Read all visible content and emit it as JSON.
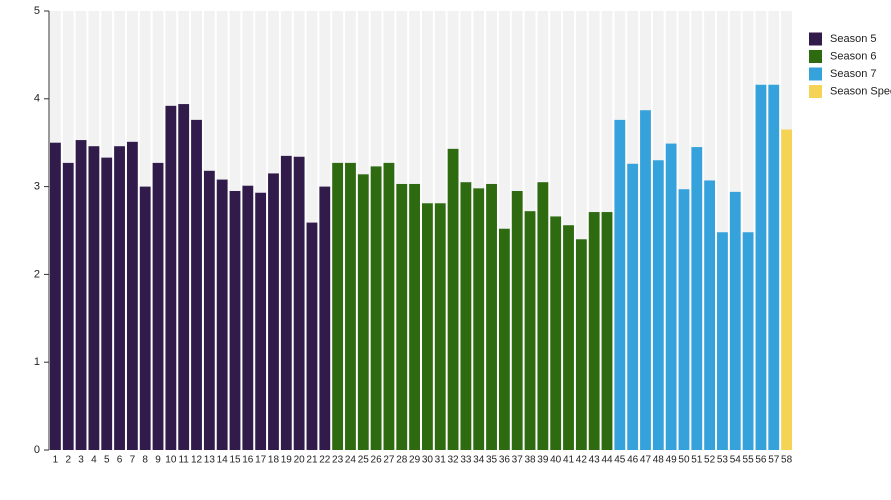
{
  "chart_data": {
    "type": "bar",
    "categories": [
      "1",
      "2",
      "3",
      "4",
      "5",
      "6",
      "7",
      "8",
      "9",
      "10",
      "11",
      "12",
      "13",
      "14",
      "15",
      "16",
      "17",
      "18",
      "19",
      "20",
      "21",
      "22",
      "23",
      "24",
      "25",
      "26",
      "27",
      "28",
      "29",
      "30",
      "31",
      "32",
      "33",
      "34",
      "35",
      "36",
      "37",
      "38",
      "39",
      "40",
      "41",
      "42",
      "43",
      "44",
      "45",
      "46",
      "47",
      "48",
      "49",
      "50",
      "51",
      "52",
      "53",
      "54",
      "55",
      "56",
      "57",
      "58"
    ],
    "series": [
      {
        "name": "Season 5",
        "color": "#311b4b",
        "values": [
          3.5,
          3.27,
          3.53,
          3.46,
          3.33,
          3.46,
          3.51,
          3.0,
          3.27,
          3.92,
          3.94,
          3.76,
          3.18,
          3.08,
          2.95,
          3.01,
          2.93,
          3.15,
          3.35,
          3.34,
          2.59,
          3.0,
          null,
          null,
          null,
          null,
          null,
          null,
          null,
          null,
          null,
          null,
          null,
          null,
          null,
          null,
          null,
          null,
          null,
          null,
          null,
          null,
          null,
          null,
          null,
          null,
          null,
          null,
          null,
          null,
          null,
          null,
          null,
          null,
          null,
          null,
          null,
          null
        ]
      },
      {
        "name": "Season 6",
        "color": "#2d6a10",
        "values": [
          null,
          null,
          null,
          null,
          null,
          null,
          null,
          null,
          null,
          null,
          null,
          null,
          null,
          null,
          null,
          null,
          null,
          null,
          null,
          null,
          null,
          null,
          3.27,
          3.27,
          3.14,
          3.23,
          3.27,
          3.03,
          3.03,
          2.81,
          2.81,
          3.43,
          3.05,
          2.98,
          3.03,
          2.52,
          2.95,
          2.72,
          3.05,
          2.66,
          2.56,
          2.4,
          2.71,
          2.71,
          null,
          null,
          null,
          null,
          null,
          null,
          null,
          null,
          null,
          null,
          null,
          null,
          null,
          null
        ]
      },
      {
        "name": "Season 7",
        "color": "#36a2dc",
        "values": [
          null,
          null,
          null,
          null,
          null,
          null,
          null,
          null,
          null,
          null,
          null,
          null,
          null,
          null,
          null,
          null,
          null,
          null,
          null,
          null,
          null,
          null,
          null,
          null,
          null,
          null,
          null,
          null,
          null,
          null,
          null,
          null,
          null,
          null,
          null,
          null,
          null,
          null,
          null,
          null,
          null,
          null,
          null,
          null,
          3.76,
          3.26,
          3.87,
          3.3,
          3.49,
          2.97,
          3.45,
          3.07,
          2.48,
          2.94,
          2.48,
          4.16,
          4.16,
          null
        ]
      },
      {
        "name": "Season Spec",
        "color": "#f5d354",
        "values": [
          null,
          null,
          null,
          null,
          null,
          null,
          null,
          null,
          null,
          null,
          null,
          null,
          null,
          null,
          null,
          null,
          null,
          null,
          null,
          null,
          null,
          null,
          null,
          null,
          null,
          null,
          null,
          null,
          null,
          null,
          null,
          null,
          null,
          null,
          null,
          null,
          null,
          null,
          null,
          null,
          null,
          null,
          null,
          null,
          null,
          null,
          null,
          null,
          null,
          null,
          null,
          null,
          null,
          null,
          null,
          null,
          null,
          3.65
        ]
      }
    ],
    "ylim": [
      0,
      5
    ],
    "yticks": [
      0,
      1,
      2,
      3,
      4,
      5
    ],
    "legend": "top-right"
  }
}
